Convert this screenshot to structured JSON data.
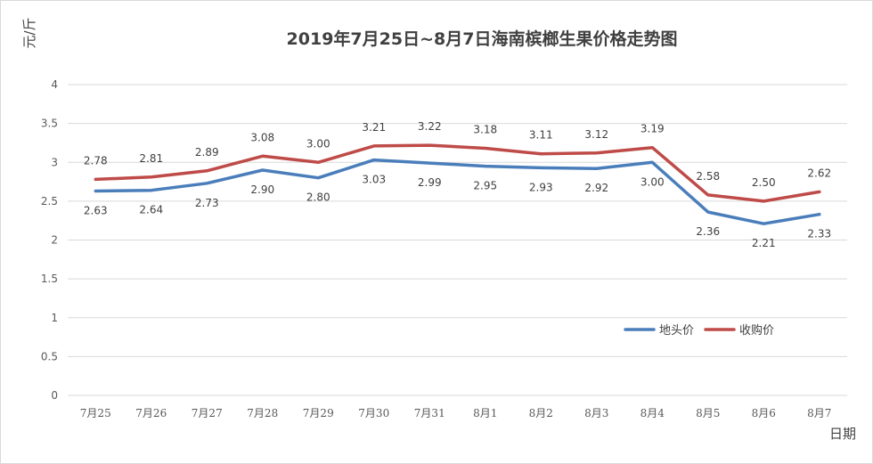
{
  "chart_data": {
    "type": "line",
    "title": "2019年7月25日~8月7日海南槟榔生果价格走势图",
    "ylabel": "元/斤",
    "xlabel": "日期",
    "ylim": [
      0,
      4
    ],
    "yticks": [
      "0",
      "0.5",
      "1",
      "1.5",
      "2",
      "2.5",
      "3",
      "3.5",
      "4"
    ],
    "ytick_values": [
      0,
      0.5,
      1,
      1.5,
      2,
      2.5,
      3,
      3.5,
      4
    ],
    "grid": true,
    "legend_position": "right",
    "categories": [
      "7月25",
      "7月26",
      "7月27",
      "7月28",
      "7月29",
      "7月30",
      "7月31",
      "8月1",
      "8月2",
      "8月3",
      "8月4",
      "8月5",
      "8月6",
      "8月7"
    ],
    "series": [
      {
        "name": "地头价",
        "color": "#4a7ebb",
        "values": [
          2.63,
          2.64,
          2.73,
          2.9,
          2.8,
          3.03,
          2.99,
          2.95,
          2.93,
          2.92,
          3.0,
          2.36,
          2.21,
          2.33
        ],
        "labels": [
          "2.63",
          "2.64",
          "2.73",
          "2.90",
          "2.80",
          "3.03",
          "2.99",
          "2.95",
          "2.93",
          "2.92",
          "3.00",
          "2.36",
          "2.21",
          "2.33"
        ],
        "label_side": "below"
      },
      {
        "name": "收购价",
        "color": "#be4b48",
        "values": [
          2.78,
          2.81,
          2.89,
          3.08,
          3.0,
          3.21,
          3.22,
          3.18,
          3.11,
          3.12,
          3.19,
          2.58,
          2.5,
          2.62
        ],
        "labels": [
          "2.78",
          "2.81",
          "2.89",
          "3.08",
          "3.00",
          "3.21",
          "3.22",
          "3.18",
          "3.11",
          "3.12",
          "3.19",
          "2.58",
          "2.50",
          "2.62"
        ],
        "label_side": "above"
      }
    ]
  }
}
